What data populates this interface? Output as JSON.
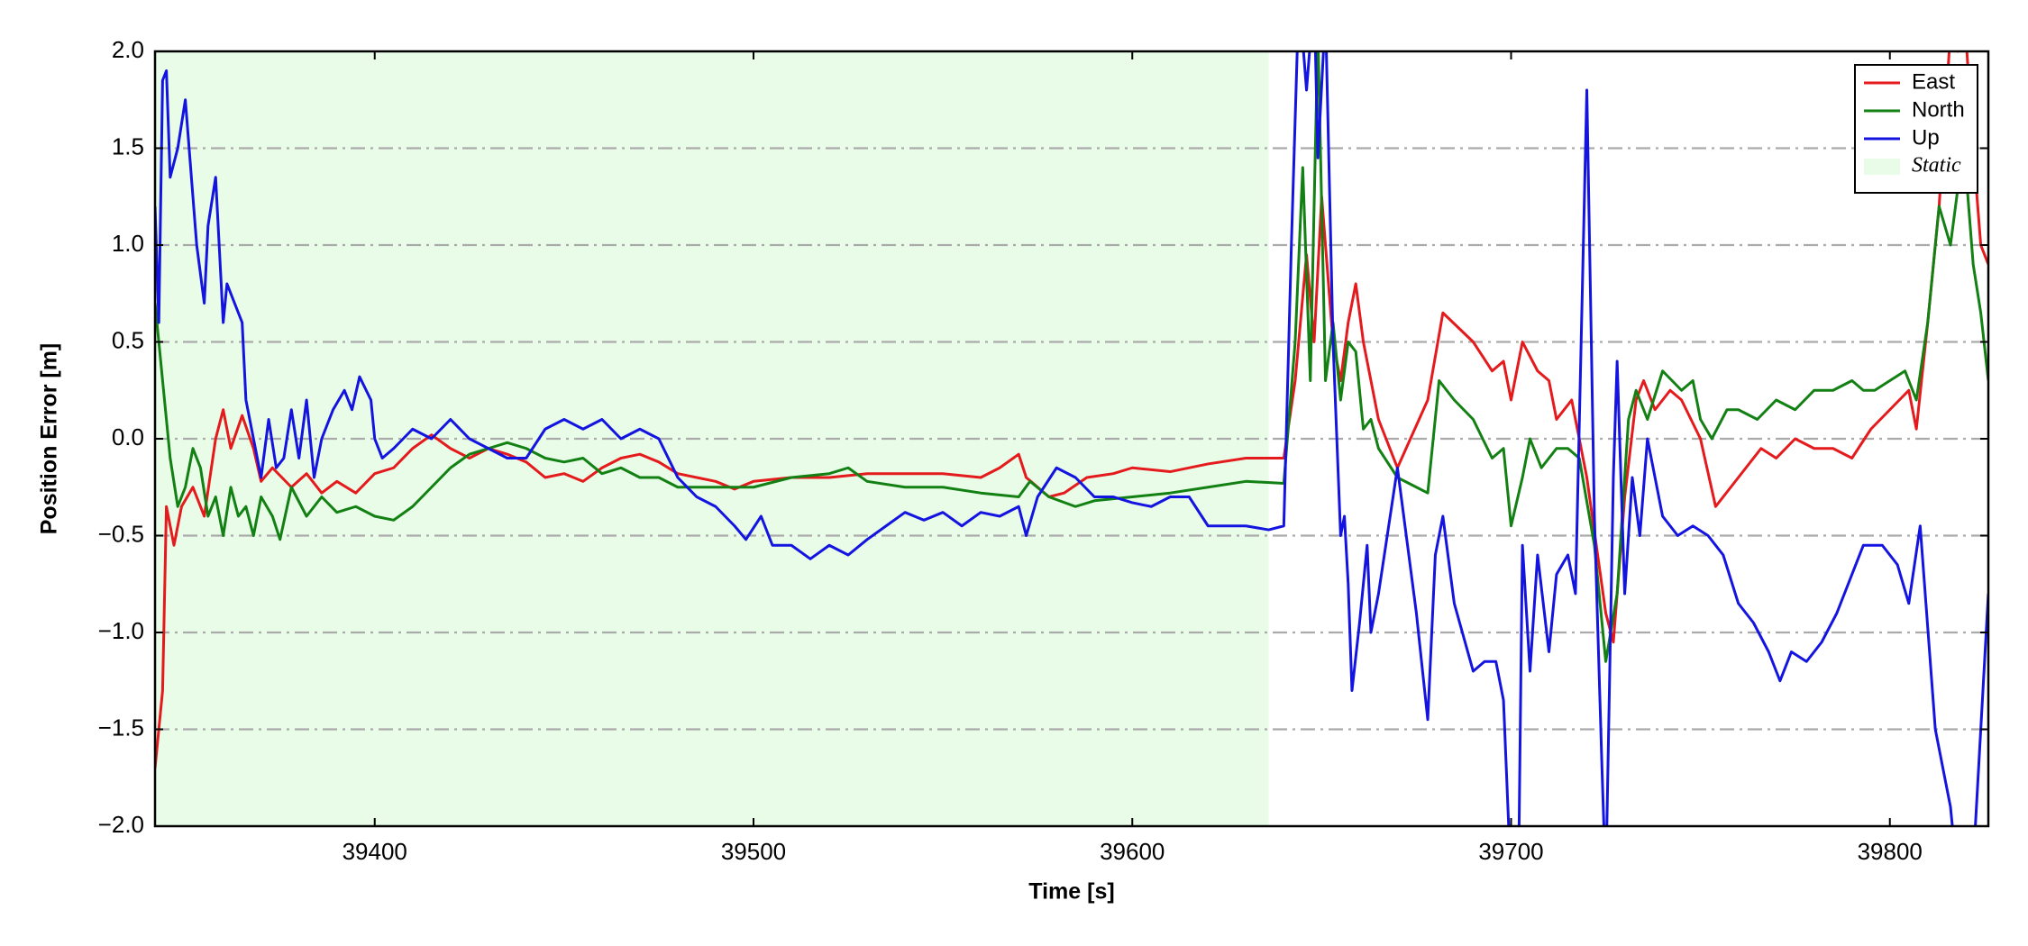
{
  "chart_data": {
    "type": "line",
    "xlabel": "Time [s]",
    "ylabel": "Position Error [m]",
    "xlim": [
      39342,
      39826
    ],
    "ylim": [
      -2.0,
      2.0
    ],
    "xticks": [
      39400,
      39500,
      39600,
      39700,
      39800
    ],
    "yticks": [
      {
        "value": -2.0,
        "label": "−2.0"
      },
      {
        "value": -1.5,
        "label": "−1.5"
      },
      {
        "value": -1.0,
        "label": "−1.0"
      },
      {
        "value": -0.5,
        "label": "−0.5"
      },
      {
        "value": 0,
        "label": "0.0"
      },
      {
        "value": 0.5,
        "label": "0.5"
      },
      {
        "value": 1.0,
        "label": "1.0"
      },
      {
        "value": 1.5,
        "label": "1.5"
      },
      {
        "value": 2.0,
        "label": "2.0"
      }
    ],
    "grid": true,
    "legend": "upper right",
    "shaded_region": {
      "label": "Static",
      "x": [
        39342,
        39636
      ],
      "color": "#e8fce8"
    },
    "series": [
      {
        "name": "East",
        "color": "#e41a1c",
        "x": [
          39342,
          39344,
          39345,
          39347,
          39349,
          39352,
          39355,
          39358,
          39360,
          39362,
          39365,
          39368,
          39370,
          39373,
          39378,
          39382,
          39386,
          39390,
          39395,
          39400,
          39405,
          39410,
          39415,
          39420,
          39425,
          39430,
          39435,
          39440,
          39445,
          39450,
          39455,
          39460,
          39465,
          39470,
          39475,
          39480,
          39485,
          39490,
          39495,
          39500,
          39510,
          39520,
          39530,
          39540,
          39550,
          39560,
          39565,
          39570,
          39572,
          39578,
          39582,
          39588,
          39595,
          39600,
          39610,
          39620,
          39630,
          39640,
          39643,
          39646,
          39648,
          39650,
          39653,
          39655,
          39657,
          39659,
          39661,
          39665,
          39670,
          39678,
          39682,
          39690,
          39695,
          39698,
          39700,
          39703,
          39707,
          39710,
          39712,
          39716,
          39720,
          39725,
          39727,
          39730,
          39733,
          39735,
          39738,
          39742,
          39745,
          39750,
          39754,
          39758,
          39762,
          39766,
          39770,
          39775,
          39780,
          39785,
          39790,
          39795,
          39800,
          39805,
          39807,
          39810,
          39813,
          39816,
          39818,
          39820,
          39822,
          39824,
          39826
        ],
        "values": [
          -1.7,
          -1.3,
          -0.35,
          -0.55,
          -0.35,
          -0.25,
          -0.4,
          0.0,
          0.15,
          -0.05,
          0.12,
          -0.05,
          -0.22,
          -0.15,
          -0.25,
          -0.18,
          -0.28,
          -0.22,
          -0.28,
          -0.18,
          -0.15,
          -0.05,
          0.02,
          -0.05,
          -0.1,
          -0.05,
          -0.08,
          -0.12,
          -0.2,
          -0.18,
          -0.22,
          -0.15,
          -0.1,
          -0.08,
          -0.12,
          -0.18,
          -0.2,
          -0.22,
          -0.26,
          -0.22,
          -0.2,
          -0.2,
          -0.18,
          -0.18,
          -0.18,
          -0.2,
          -0.15,
          -0.08,
          -0.2,
          -0.3,
          -0.28,
          -0.2,
          -0.18,
          -0.15,
          -0.17,
          -0.13,
          -0.1,
          -0.1,
          0.3,
          0.95,
          0.5,
          1.25,
          0.5,
          0.3,
          0.6,
          0.8,
          0.5,
          0.1,
          -0.15,
          0.2,
          0.65,
          0.5,
          0.35,
          0.4,
          0.2,
          0.5,
          0.35,
          0.3,
          0.1,
          0.2,
          -0.2,
          -0.9,
          -1.05,
          -0.3,
          0.2,
          0.3,
          0.15,
          0.25,
          0.2,
          0.0,
          -0.35,
          -0.25,
          -0.15,
          -0.05,
          -0.1,
          0.0,
          -0.05,
          -0.05,
          -0.1,
          0.05,
          0.15,
          0.25,
          0.05,
          0.6,
          1.2,
          2.1,
          2.0,
          2.1,
          1.5,
          1.0,
          0.9
        ]
      },
      {
        "name": "North",
        "color": "#138013",
        "x": [
          39342,
          39344,
          39346,
          39348,
          39350,
          39352,
          39354,
          39356,
          39358,
          39360,
          39362,
          39364,
          39366,
          39368,
          39370,
          39373,
          39375,
          39378,
          39382,
          39386,
          39390,
          39395,
          39400,
          39405,
          39410,
          39415,
          39420,
          39425,
          39430,
          39435,
          39440,
          39445,
          39450,
          39455,
          39460,
          39465,
          39470,
          39475,
          39480,
          39490,
          39500,
          39510,
          39520,
          39525,
          39530,
          39540,
          39550,
          39560,
          39570,
          39573,
          39578,
          39585,
          39590,
          39600,
          39610,
          39620,
          39630,
          39640,
          39643,
          39645,
          39647,
          39649,
          39651,
          39653,
          39655,
          39657,
          39659,
          39661,
          39663,
          39665,
          39670,
          39675,
          39678,
          39681,
          39685,
          39690,
          39695,
          39698,
          39700,
          39703,
          39705,
          39708,
          39712,
          39715,
          39718,
          39722,
          39725,
          39728,
          39731,
          39733,
          39736,
          39740,
          39745,
          39748,
          39750,
          39753,
          39757,
          39760,
          39765,
          39770,
          39775,
          39780,
          39785,
          39790,
          39793,
          39796,
          39800,
          39804,
          39807,
          39810,
          39813,
          39816,
          39818,
          39820,
          39822,
          39824,
          39826
        ],
        "values": [
          0.7,
          0.3,
          -0.1,
          -0.35,
          -0.25,
          -0.05,
          -0.15,
          -0.4,
          -0.3,
          -0.5,
          -0.25,
          -0.4,
          -0.35,
          -0.5,
          -0.3,
          -0.4,
          -0.52,
          -0.25,
          -0.4,
          -0.3,
          -0.38,
          -0.35,
          -0.4,
          -0.42,
          -0.35,
          -0.25,
          -0.15,
          -0.08,
          -0.05,
          -0.02,
          -0.05,
          -0.1,
          -0.12,
          -0.1,
          -0.18,
          -0.15,
          -0.2,
          -0.2,
          -0.25,
          -0.25,
          -0.25,
          -0.2,
          -0.18,
          -0.15,
          -0.22,
          -0.25,
          -0.25,
          -0.28,
          -0.3,
          -0.22,
          -0.3,
          -0.35,
          -0.32,
          -0.3,
          -0.28,
          -0.25,
          -0.22,
          -0.23,
          0.5,
          1.4,
          0.3,
          2.1,
          0.3,
          0.6,
          0.2,
          0.5,
          0.45,
          0.05,
          0.1,
          -0.05,
          -0.2,
          -0.25,
          -0.28,
          0.3,
          0.2,
          0.1,
          -0.1,
          -0.05,
          -0.45,
          -0.2,
          0.0,
          -0.15,
          -0.05,
          -0.05,
          -0.1,
          -0.55,
          -1.15,
          -0.8,
          0.1,
          0.25,
          0.1,
          0.35,
          0.25,
          0.3,
          0.1,
          0.0,
          0.15,
          0.15,
          0.1,
          0.2,
          0.15,
          0.25,
          0.25,
          0.3,
          0.25,
          0.25,
          0.3,
          0.35,
          0.2,
          0.6,
          1.2,
          1.0,
          1.3,
          1.4,
          0.9,
          0.65,
          0.3
        ]
      },
      {
        "name": "Up",
        "color": "#1414e0",
        "x": [
          39342,
          39343,
          39344,
          39345,
          39346,
          39348,
          39350,
          39351,
          39353,
          39355,
          39356,
          39358,
          39360,
          39361,
          39363,
          39365,
          39366,
          39368,
          39370,
          39372,
          39374,
          39376,
          39378,
          39380,
          39382,
          39384,
          39386,
          39389,
          39392,
          39394,
          39396,
          39399,
          39400,
          39402,
          39405,
          39410,
          39415,
          39420,
          39425,
          39430,
          39435,
          39440,
          39445,
          39450,
          39455,
          39460,
          39465,
          39470,
          39475,
          39480,
          39485,
          39490,
          39495,
          39498,
          39502,
          39505,
          39510,
          39515,
          39520,
          39525,
          39530,
          39535,
          39540,
          39545,
          39550,
          39555,
          39560,
          39565,
          39570,
          39572,
          39575,
          39580,
          39585,
          39590,
          39595,
          39600,
          39605,
          39610,
          39615,
          39620,
          39625,
          39630,
          39636,
          39640,
          39642,
          39644,
          39646,
          39648,
          39649,
          39651,
          39653,
          39655,
          39656,
          39657,
          39658,
          39660,
          39662,
          39663,
          39665,
          39670,
          39675,
          39678,
          39680,
          39682,
          39685,
          39690,
          39693,
          39696,
          39698,
          39700,
          39702,
          39703,
          39705,
          39707,
          39710,
          39712,
          39715,
          39717,
          39720,
          39722,
          39724,
          39725,
          39727,
          39728,
          39730,
          39732,
          39734,
          39736,
          39740,
          39744,
          39748,
          39752,
          39756,
          39760,
          39764,
          39768,
          39771,
          39774,
          39778,
          39782,
          39786,
          39790,
          39793,
          39798,
          39802,
          39805,
          39808,
          39812,
          39816,
          39818,
          39822,
          39824,
          39826
        ],
        "values": [
          1.2,
          0.6,
          1.85,
          1.9,
          1.35,
          1.5,
          1.75,
          1.5,
          1.0,
          0.7,
          1.1,
          1.35,
          0.6,
          0.8,
          0.7,
          0.6,
          0.2,
          0.0,
          -0.2,
          0.1,
          -0.15,
          -0.1,
          0.15,
          -0.1,
          0.2,
          -0.2,
          0.0,
          0.15,
          0.25,
          0.15,
          0.32,
          0.2,
          0.0,
          -0.1,
          -0.05,
          0.05,
          0.0,
          0.1,
          0.0,
          -0.05,
          -0.1,
          -0.1,
          0.05,
          0.1,
          0.05,
          0.1,
          0.0,
          0.05,
          0.0,
          -0.2,
          -0.3,
          -0.35,
          -0.45,
          -0.52,
          -0.4,
          -0.55,
          -0.55,
          -0.62,
          -0.55,
          -0.6,
          -0.52,
          -0.45,
          -0.38,
          -0.42,
          -0.38,
          -0.45,
          -0.38,
          -0.4,
          -0.35,
          -0.5,
          -0.3,
          -0.15,
          -0.2,
          -0.3,
          -0.3,
          -0.33,
          -0.35,
          -0.3,
          -0.3,
          -0.45,
          -0.45,
          -0.45,
          -0.47,
          -0.45,
          1.0,
          2.3,
          1.8,
          2.3,
          1.45,
          2.2,
          0.5,
          -0.5,
          -0.4,
          -0.75,
          -1.3,
          -0.95,
          -0.55,
          -1.0,
          -0.8,
          -0.15,
          -0.9,
          -1.45,
          -0.6,
          -0.4,
          -0.85,
          -1.2,
          -1.15,
          -1.15,
          -1.35,
          -2.3,
          -2.2,
          -0.55,
          -1.2,
          -0.6,
          -1.1,
          -0.7,
          -0.6,
          -0.8,
          1.8,
          -0.4,
          -1.7,
          -2.3,
          -0.2,
          0.4,
          -0.8,
          -0.2,
          -0.5,
          0.0,
          -0.4,
          -0.5,
          -0.45,
          -0.5,
          -0.6,
          -0.85,
          -0.95,
          -1.1,
          -1.25,
          -1.1,
          -1.15,
          -1.05,
          -0.9,
          -0.7,
          -0.55,
          -0.55,
          -0.65,
          -0.85,
          -0.45,
          -1.5,
          -1.9,
          -2.3,
          -2.2,
          -1.5,
          -0.8
        ]
      }
    ]
  }
}
